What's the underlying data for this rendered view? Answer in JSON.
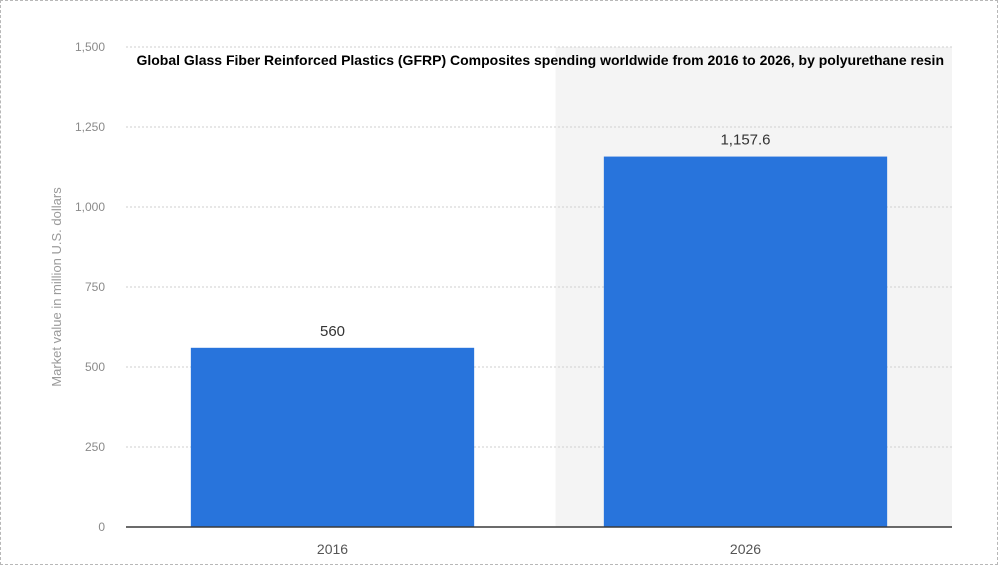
{
  "chart_data": {
    "type": "bar",
    "title": "Global Glass Fiber Reinforced Plastics (GFRP) Composites spending worldwide from 2016 to 2026, by polyurethane resin",
    "xlabel": "",
    "ylabel": "Market value in million U.S. dollars",
    "categories": [
      "2016",
      "2026"
    ],
    "values": [
      560,
      1157.6
    ],
    "value_labels": [
      "560",
      "1,157.6"
    ],
    "ylim": [
      0,
      1500
    ],
    "yticks": [
      0,
      250,
      500,
      750,
      1000,
      1250,
      1500
    ],
    "ytick_labels": [
      "0",
      "250",
      "500",
      "750",
      "1,000",
      "1,250",
      "1,500"
    ],
    "grid": true,
    "bar_color": "#2874dc"
  }
}
